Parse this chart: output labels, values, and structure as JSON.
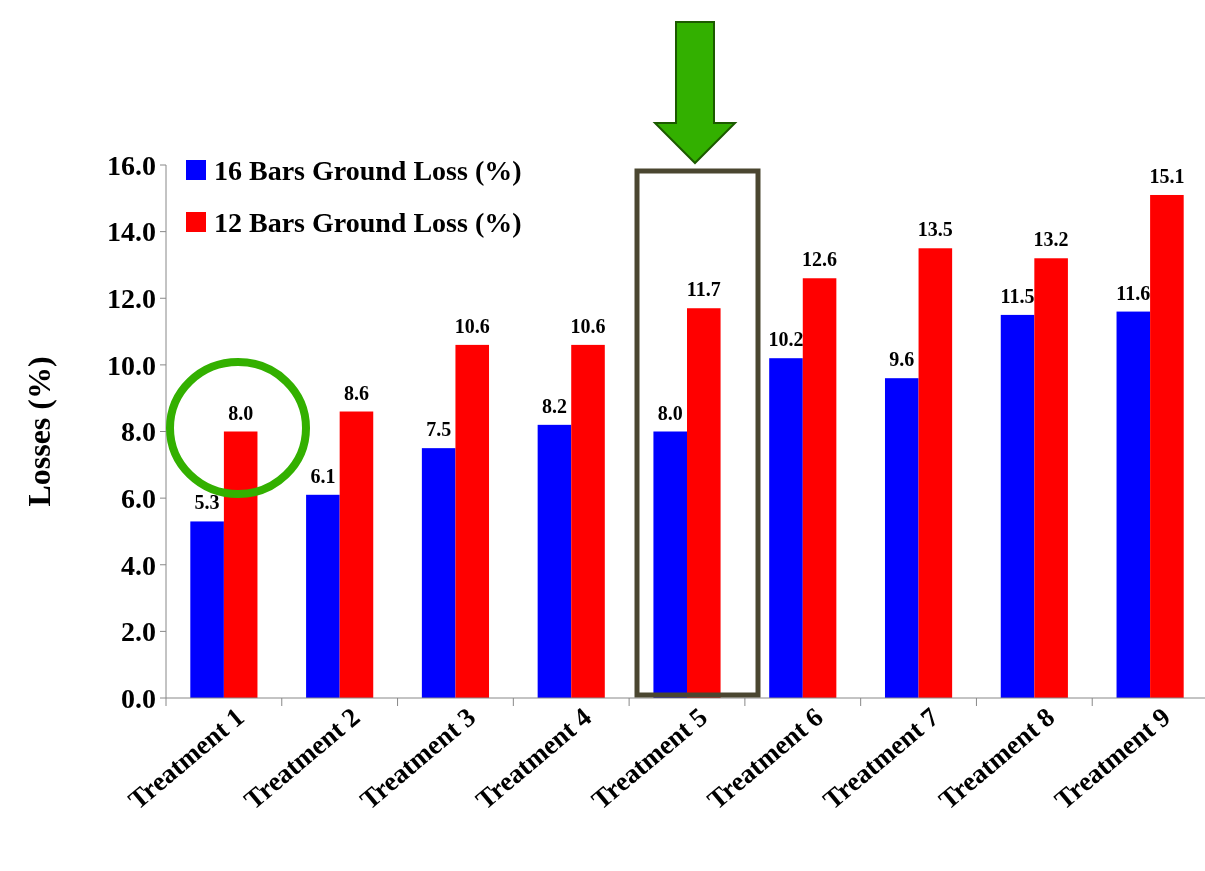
{
  "chart_data": {
    "type": "bar",
    "ylabel": "Losses (%)",
    "categories": [
      "Treatment 1",
      "Treatment 2",
      "Treatment 3",
      "Treatment 4",
      "Treatment 5",
      "Treatment 6",
      "Treatment 7",
      "Treatment 8",
      "Treatment 9"
    ],
    "series": [
      {
        "name": "16 Bars Ground Loss (%)",
        "color": "#0000ff",
        "values": [
          5.3,
          6.1,
          7.5,
          8.2,
          8.0,
          10.2,
          9.6,
          11.5,
          11.6
        ],
        "value_labels": [
          "5.3",
          "6.1",
          "7.5",
          "8.2",
          "8.0",
          "10.2",
          "9.6",
          "11.5",
          "11.6"
        ]
      },
      {
        "name": "12 Bars Ground Loss (%)",
        "color": "#ff0000",
        "values": [
          8.0,
          8.6,
          10.6,
          10.6,
          11.7,
          12.6,
          13.5,
          13.2,
          15.1
        ],
        "value_labels": [
          "8.0",
          "8.6",
          "10.6",
          "10.6",
          "11.7",
          "12.6",
          "13.5",
          "13.2",
          "15.1"
        ]
      }
    ],
    "ylim": [
      0,
      16
    ],
    "yticks": [
      {
        "value": 0,
        "label": "0.0"
      },
      {
        "value": 2,
        "label": "2.0"
      },
      {
        "value": 4,
        "label": "4.0"
      },
      {
        "value": 6,
        "label": "6.0"
      },
      {
        "value": 8,
        "label": "8.0"
      },
      {
        "value": 10,
        "label": "10.0"
      },
      {
        "value": 12,
        "label": "12.0"
      },
      {
        "value": 14,
        "label": "14.0"
      },
      {
        "value": 16,
        "label": "16.0"
      }
    ],
    "legend": "top left",
    "grid": false
  }
}
